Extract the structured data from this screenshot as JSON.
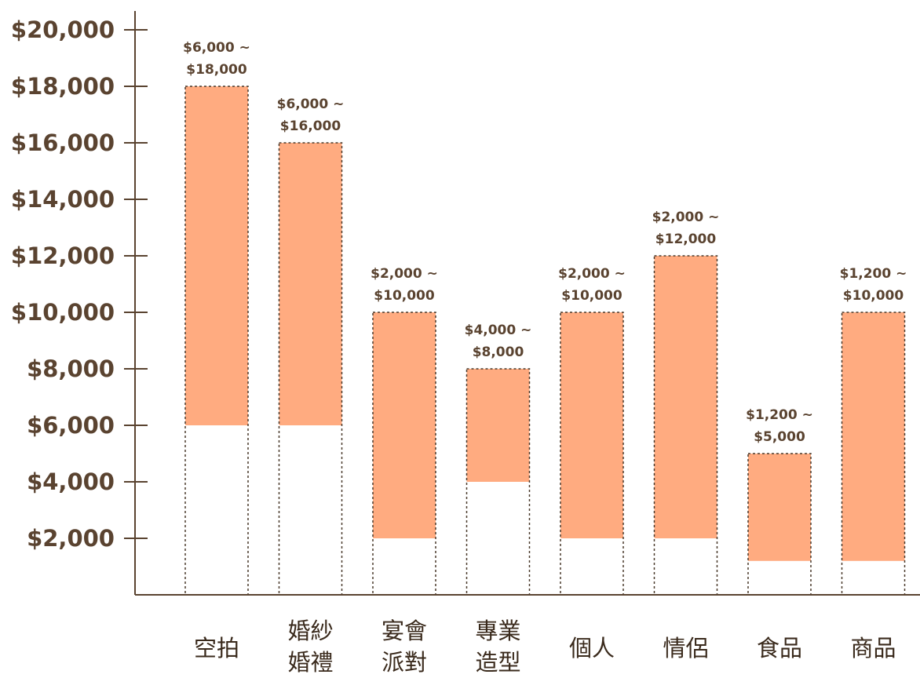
{
  "chart_data": {
    "type": "bar",
    "title": "",
    "xlabel": "",
    "ylabel": "",
    "ylim": [
      0,
      20000
    ],
    "yticks": [
      2000,
      4000,
      6000,
      8000,
      10000,
      12000,
      14000,
      16000,
      18000,
      20000
    ],
    "ytick_labels": [
      "$2,000",
      "$4,000",
      "$6,000",
      "$8,000",
      "$10,000",
      "$12,000",
      "$14,000",
      "$16,000",
      "$18,000",
      "$20,000"
    ],
    "grid": false,
    "categories": [
      {
        "lines": [
          "空拍"
        ]
      },
      {
        "lines": [
          "婚紗",
          "婚禮"
        ]
      },
      {
        "lines": [
          "宴會",
          "派對"
        ]
      },
      {
        "lines": [
          "專業",
          "造型"
        ]
      },
      {
        "lines": [
          "個人"
        ]
      },
      {
        "lines": [
          "情侶"
        ]
      },
      {
        "lines": [
          "食品"
        ]
      },
      {
        "lines": [
          "商品"
        ]
      }
    ],
    "ranges": [
      {
        "min": 6000,
        "max": 18000,
        "label_top": "$6,000 ~",
        "label_bottom": "$18,000"
      },
      {
        "min": 6000,
        "max": 16000,
        "label_top": "$6,000 ~",
        "label_bottom": "$16,000"
      },
      {
        "min": 2000,
        "max": 10000,
        "label_top": "$2,000 ~",
        "label_bottom": "$10,000"
      },
      {
        "min": 4000,
        "max": 8000,
        "label_top": "$4,000 ~",
        "label_bottom": "$8,000"
      },
      {
        "min": 2000,
        "max": 10000,
        "label_top": "$2,000 ~",
        "label_bottom": "$10,000"
      },
      {
        "min": 2000,
        "max": 12000,
        "label_top": "$2,000 ~",
        "label_bottom": "$12,000"
      },
      {
        "min": 1200,
        "max": 5000,
        "label_top": "$1,200 ~",
        "label_bottom": "$5,000"
      },
      {
        "min": 1200,
        "max": 10000,
        "label_top": "$1,200 ~",
        "label_bottom": "$10,000"
      }
    ],
    "colors": {
      "range_fill": "#ffab80",
      "base_fill": "#ffffff",
      "outline": "#4a3a2c",
      "axis": "#5a4330",
      "label_text": "#5a4330",
      "category_text": "#3a2a1c"
    }
  }
}
